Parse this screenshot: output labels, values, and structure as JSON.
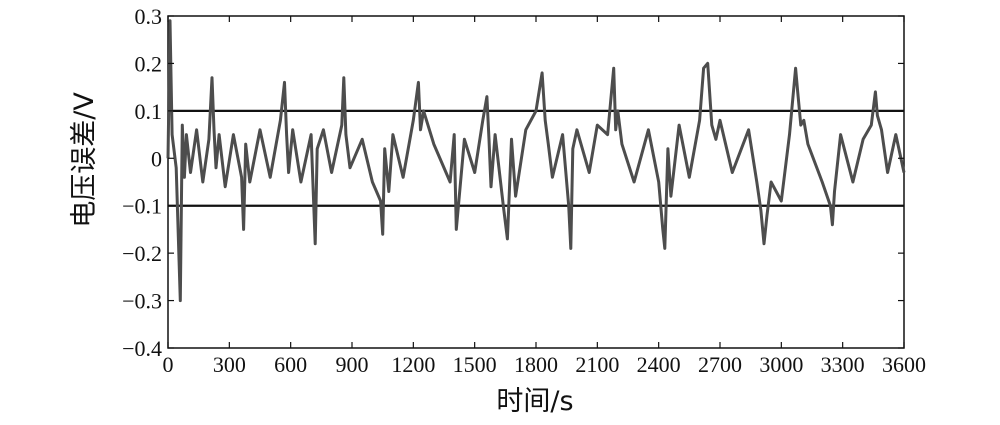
{
  "chart_data": {
    "type": "line",
    "title": "",
    "xlabel": "时间/s",
    "ylabel": "电压误差/V",
    "xlim": [
      0,
      3600
    ],
    "ylim": [
      -0.4,
      0.3
    ],
    "xticks": [
      0,
      300,
      600,
      900,
      1200,
      1500,
      1800,
      2100,
      2400,
      2700,
      3000,
      3300,
      3600
    ],
    "yticks": [
      0.3,
      0.2,
      0.1,
      0,
      -0.1,
      -0.2,
      -0.3,
      -0.4
    ],
    "xtick_labels": [
      "0",
      "300",
      "600",
      "900",
      "1200",
      "1500",
      "1800",
      "2100",
      "2400",
      "2700",
      "3000",
      "3300",
      "3600"
    ],
    "ytick_labels": [
      "0.3",
      "0.2",
      "0.1",
      "0",
      "−0.1",
      "−0.2",
      "−0.3",
      "−0.4"
    ],
    "reference_lines": [
      0.1,
      -0.1
    ],
    "grid": false,
    "line_color": "#4d4d4d",
    "series": [
      {
        "x": [
          0,
          10,
          20,
          40,
          60,
          70,
          80,
          90,
          110,
          140,
          170,
          200,
          215,
          225,
          235,
          250,
          280,
          320,
          360,
          370,
          380,
          400,
          450,
          500,
          550,
          570,
          580,
          590,
          610,
          650,
          700,
          720,
          730,
          760,
          800,
          850,
          860,
          870,
          890,
          950,
          1000,
          1040,
          1050,
          1060,
          1080,
          1100,
          1150,
          1200,
          1225,
          1235,
          1250,
          1300,
          1380,
          1400,
          1410,
          1450,
          1500,
          1540,
          1560,
          1570,
          1580,
          1600,
          1640,
          1660,
          1680,
          1700,
          1750,
          1800,
          1830,
          1845,
          1860,
          1880,
          1930,
          1960,
          1970,
          1980,
          2000,
          2060,
          2100,
          2150,
          2180,
          2190,
          2200,
          2220,
          2280,
          2350,
          2400,
          2420,
          2430,
          2445,
          2460,
          2500,
          2550,
          2600,
          2620,
          2640,
          2660,
          2680,
          2700,
          2760,
          2840,
          2880,
          2900,
          2915,
          2930,
          2950,
          3000,
          3040,
          3070,
          3080,
          3095,
          3110,
          3130,
          3200,
          3240,
          3250,
          3260,
          3290,
          3350,
          3400,
          3440,
          3460,
          3470,
          3490,
          3520,
          3560,
          3600
        ],
        "y": [
          0.0,
          0.29,
          0.05,
          -0.02,
          -0.3,
          0.07,
          -0.04,
          0.05,
          -0.03,
          0.06,
          -0.05,
          0.04,
          0.17,
          0.06,
          -0.02,
          0.05,
          -0.06,
          0.05,
          -0.04,
          -0.15,
          0.03,
          -0.05,
          0.06,
          -0.04,
          0.08,
          0.16,
          0.05,
          -0.03,
          0.06,
          -0.05,
          0.05,
          -0.18,
          0.02,
          0.06,
          -0.03,
          0.07,
          0.17,
          0.05,
          -0.02,
          0.04,
          -0.05,
          -0.09,
          -0.16,
          0.02,
          -0.07,
          0.05,
          -0.04,
          0.08,
          0.16,
          0.06,
          0.1,
          0.03,
          -0.05,
          0.05,
          -0.15,
          0.04,
          -0.03,
          0.08,
          0.13,
          0.04,
          -0.06,
          0.05,
          -0.1,
          -0.17,
          0.04,
          -0.08,
          0.06,
          0.1,
          0.18,
          0.08,
          0.03,
          -0.04,
          0.05,
          -0.1,
          -0.19,
          0.02,
          0.06,
          -0.03,
          0.07,
          0.05,
          0.19,
          0.06,
          0.1,
          0.03,
          -0.05,
          0.06,
          -0.05,
          -0.15,
          -0.19,
          0.02,
          -0.08,
          0.07,
          -0.04,
          0.08,
          0.19,
          0.2,
          0.07,
          0.04,
          0.08,
          -0.03,
          0.06,
          -0.05,
          -0.11,
          -0.18,
          -0.12,
          -0.05,
          -0.09,
          0.05,
          0.19,
          0.14,
          0.07,
          0.08,
          0.03,
          -0.05,
          -0.1,
          -0.14,
          -0.07,
          0.05,
          -0.05,
          0.04,
          0.07,
          0.14,
          0.09,
          0.06,
          -0.03,
          0.05,
          -0.03
        ]
      }
    ]
  }
}
